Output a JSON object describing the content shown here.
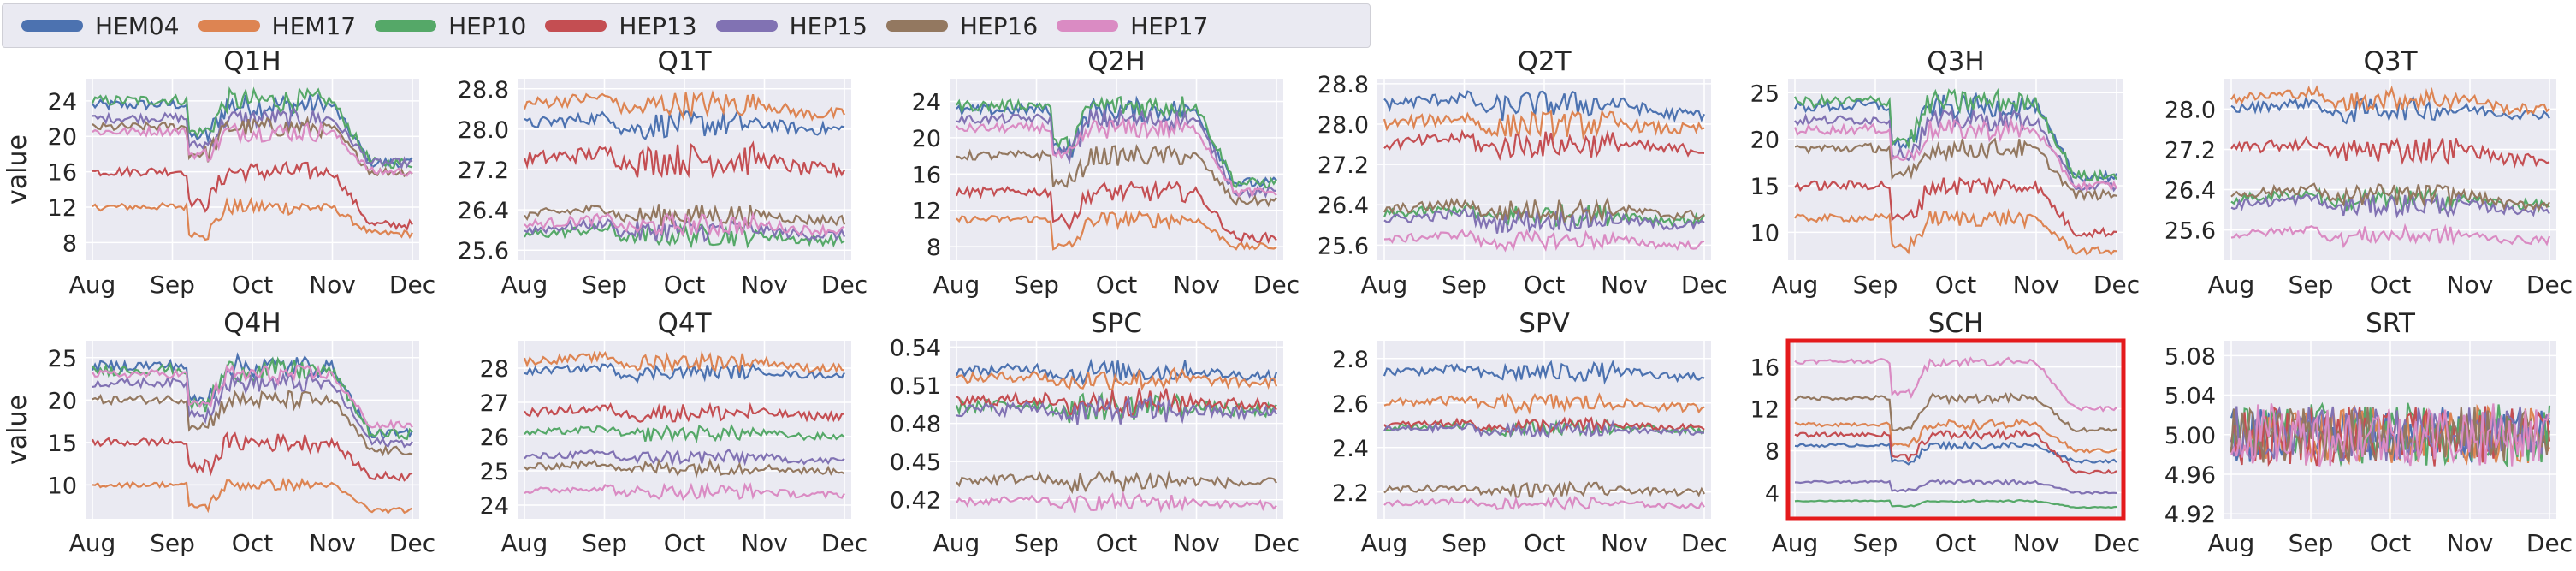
{
  "legend": [
    {
      "name": "HEM04",
      "color": "#4c72b0"
    },
    {
      "name": "HEM17",
      "color": "#dd8452"
    },
    {
      "name": "HEP10",
      "color": "#55a868"
    },
    {
      "name": "HEP13",
      "color": "#c44e52"
    },
    {
      "name": "HEP15",
      "color": "#8172b3"
    },
    {
      "name": "HEP16",
      "color": "#937860"
    },
    {
      "name": "HEP17",
      "color": "#da8bc3"
    }
  ],
  "ylabel": "value",
  "chart_data": [
    {
      "title": "Q1H",
      "type": "line",
      "yticks": [
        "8",
        "12",
        "16",
        "20",
        "24"
      ],
      "ylim": [
        6,
        26.5
      ],
      "xticks": [
        "Aug",
        "Sep",
        "Oct",
        "Nov",
        "Dec"
      ],
      "series": [
        {
          "name": "HEM04",
          "base": 23.5,
          "dip": 3.5,
          "end": 17,
          "noise": 0.6
        },
        {
          "name": "HEM17",
          "base": 12,
          "dip": 3,
          "end": 9,
          "noise": 0.4
        },
        {
          "name": "HEP10",
          "base": 24,
          "dip": 3.5,
          "end": 17,
          "noise": 0.6
        },
        {
          "name": "HEP13",
          "base": 16,
          "dip": 3.5,
          "end": 10,
          "noise": 0.5
        },
        {
          "name": "HEP15",
          "base": 22,
          "dip": 3,
          "end": 17,
          "noise": 0.5
        },
        {
          "name": "HEP16",
          "base": 21,
          "dip": 3,
          "end": 16,
          "noise": 0.5
        },
        {
          "name": "HEP17",
          "base": 20.5,
          "dip": 2.5,
          "end": 16,
          "noise": 0.5
        }
      ]
    },
    {
      "title": "Q1T",
      "type": "line",
      "yticks": [
        "25.6",
        "26.4",
        "27.2",
        "28.0",
        "28.8"
      ],
      "ylim": [
        25.4,
        29.0
      ],
      "xticks": [
        "Aug",
        "Sep",
        "Oct",
        "Nov",
        "Dec"
      ],
      "series": [
        {
          "name": "HEM04",
          "base": 28.1,
          "dip": 0.1,
          "end": 28.0,
          "noise": 0.12
        },
        {
          "name": "HEM17",
          "base": 28.5,
          "dip": 0.1,
          "end": 28.3,
          "noise": 0.12
        },
        {
          "name": "HEP10",
          "base": 25.9,
          "dip": 0.05,
          "end": 25.8,
          "noise": 0.1
        },
        {
          "name": "HEP13",
          "base": 27.4,
          "dip": 0.05,
          "end": 27.2,
          "noise": 0.15
        },
        {
          "name": "HEP15",
          "base": 26.0,
          "dip": 0.05,
          "end": 25.9,
          "noise": 0.1
        },
        {
          "name": "HEP16",
          "base": 26.3,
          "dip": 0.05,
          "end": 26.2,
          "noise": 0.1
        },
        {
          "name": "HEP17",
          "base": 26.1,
          "dip": 0.05,
          "end": 26.0,
          "noise": 0.1
        }
      ]
    },
    {
      "title": "Q2H",
      "type": "line",
      "yticks": [
        "8",
        "12",
        "16",
        "20",
        "24"
      ],
      "ylim": [
        6.5,
        26.5
      ],
      "xticks": [
        "Aug",
        "Sep",
        "Oct",
        "Nov",
        "Dec"
      ],
      "series": [
        {
          "name": "HEM04",
          "base": 23,
          "dip": 4,
          "end": 15,
          "noise": 0.6
        },
        {
          "name": "HEM17",
          "base": 11,
          "dip": 3,
          "end": 8,
          "noise": 0.4
        },
        {
          "name": "HEP10",
          "base": 23.5,
          "dip": 4,
          "end": 15,
          "noise": 0.6
        },
        {
          "name": "HEP13",
          "base": 14,
          "dip": 3,
          "end": 9,
          "noise": 0.5
        },
        {
          "name": "HEP15",
          "base": 22,
          "dip": 3.5,
          "end": 14,
          "noise": 0.5
        },
        {
          "name": "HEP16",
          "base": 18,
          "dip": 3,
          "end": 13,
          "noise": 0.5
        },
        {
          "name": "HEP17",
          "base": 21,
          "dip": 3,
          "end": 14,
          "noise": 0.5
        }
      ]
    },
    {
      "title": "Q2T",
      "type": "line",
      "yticks": [
        "25.6",
        "26.4",
        "27.2",
        "28.0",
        "28.8"
      ],
      "ylim": [
        25.3,
        28.9
      ],
      "xticks": [
        "Aug",
        "Sep",
        "Oct",
        "Nov",
        "Dec"
      ],
      "series": [
        {
          "name": "HEM04",
          "base": 28.4,
          "dip": 0.1,
          "end": 28.2,
          "noise": 0.12
        },
        {
          "name": "HEM17",
          "base": 28.0,
          "dip": 0.1,
          "end": 27.9,
          "noise": 0.12
        },
        {
          "name": "HEP10",
          "base": 26.2,
          "dip": 0.05,
          "end": 26.1,
          "noise": 0.1
        },
        {
          "name": "HEP13",
          "base": 27.6,
          "dip": 0.05,
          "end": 27.5,
          "noise": 0.12
        },
        {
          "name": "HEP15",
          "base": 26.1,
          "dip": 0.05,
          "end": 26.0,
          "noise": 0.1
        },
        {
          "name": "HEP16",
          "base": 26.3,
          "dip": 0.05,
          "end": 26.2,
          "noise": 0.1
        },
        {
          "name": "HEP17",
          "base": 25.7,
          "dip": 0.05,
          "end": 25.6,
          "noise": 0.08
        }
      ]
    },
    {
      "title": "Q3H",
      "type": "line",
      "yticks": [
        "10",
        "15",
        "20",
        "25"
      ],
      "ylim": [
        7,
        26.5
      ],
      "xticks": [
        "Aug",
        "Sep",
        "Oct",
        "Nov",
        "Dec"
      ],
      "series": [
        {
          "name": "HEM04",
          "base": 23.5,
          "dip": 4,
          "end": 16,
          "noise": 0.6
        },
        {
          "name": "HEM17",
          "base": 11.5,
          "dip": 3,
          "end": 8,
          "noise": 0.4
        },
        {
          "name": "HEP10",
          "base": 24,
          "dip": 4,
          "end": 16,
          "noise": 0.6
        },
        {
          "name": "HEP13",
          "base": 15,
          "dip": 3.5,
          "end": 10,
          "noise": 0.5
        },
        {
          "name": "HEP15",
          "base": 22,
          "dip": 3.5,
          "end": 15,
          "noise": 0.5
        },
        {
          "name": "HEP16",
          "base": 19,
          "dip": 3,
          "end": 14,
          "noise": 0.5
        },
        {
          "name": "HEP17",
          "base": 21,
          "dip": 3,
          "end": 15,
          "noise": 0.5
        }
      ]
    },
    {
      "title": "Q3T",
      "type": "line",
      "yticks": [
        "25.6",
        "26.4",
        "27.2",
        "28.0"
      ],
      "ylim": [
        25.0,
        28.6
      ],
      "xticks": [
        "Aug",
        "Sep",
        "Oct",
        "Nov",
        "Dec"
      ],
      "series": [
        {
          "name": "HEM04",
          "base": 28.0,
          "dip": 0.1,
          "end": 27.9,
          "noise": 0.1
        },
        {
          "name": "HEM17",
          "base": 28.2,
          "dip": 0.1,
          "end": 28.0,
          "noise": 0.1
        },
        {
          "name": "HEP10",
          "base": 26.2,
          "dip": 0.05,
          "end": 26.1,
          "noise": 0.1
        },
        {
          "name": "HEP13",
          "base": 27.2,
          "dip": 0.05,
          "end": 27.0,
          "noise": 0.12
        },
        {
          "name": "HEP15",
          "base": 26.1,
          "dip": 0.05,
          "end": 26.0,
          "noise": 0.1
        },
        {
          "name": "HEP16",
          "base": 26.3,
          "dip": 0.05,
          "end": 26.1,
          "noise": 0.1
        },
        {
          "name": "HEP17",
          "base": 25.5,
          "dip": 0.05,
          "end": 25.4,
          "noise": 0.08
        }
      ]
    },
    {
      "title": "Q4H",
      "type": "line",
      "yticks": [
        "10",
        "15",
        "20",
        "25"
      ],
      "ylim": [
        6,
        27
      ],
      "xticks": [
        "Aug",
        "Sep",
        "Oct",
        "Nov",
        "Dec"
      ],
      "series": [
        {
          "name": "HEM04",
          "base": 24,
          "dip": 4,
          "end": 16,
          "noise": 0.6
        },
        {
          "name": "HEM17",
          "base": 10,
          "dip": 2.5,
          "end": 7,
          "noise": 0.3
        },
        {
          "name": "HEP10",
          "base": 23.5,
          "dip": 4,
          "end": 16,
          "noise": 0.6
        },
        {
          "name": "HEP13",
          "base": 15,
          "dip": 3,
          "end": 11,
          "noise": 0.5
        },
        {
          "name": "HEP15",
          "base": 22,
          "dip": 3.5,
          "end": 15,
          "noise": 0.5
        },
        {
          "name": "HEP16",
          "base": 20,
          "dip": 3,
          "end": 14,
          "noise": 0.5
        },
        {
          "name": "HEP17",
          "base": 23,
          "dip": 3.5,
          "end": 17,
          "noise": 0.5
        }
      ]
    },
    {
      "title": "Q4T",
      "type": "line",
      "yticks": [
        "24",
        "25",
        "26",
        "27",
        "28"
      ],
      "ylim": [
        23.6,
        28.8
      ],
      "xticks": [
        "Aug",
        "Sep",
        "Oct",
        "Nov",
        "Dec"
      ],
      "series": [
        {
          "name": "HEM04",
          "base": 27.9,
          "dip": 0.1,
          "end": 27.8,
          "noise": 0.1
        },
        {
          "name": "HEM17",
          "base": 28.2,
          "dip": 0.1,
          "end": 28.0,
          "noise": 0.12
        },
        {
          "name": "HEP10",
          "base": 26.1,
          "dip": 0.05,
          "end": 26.0,
          "noise": 0.1
        },
        {
          "name": "HEP13",
          "base": 26.7,
          "dip": 0.05,
          "end": 26.6,
          "noise": 0.12
        },
        {
          "name": "HEP15",
          "base": 25.4,
          "dip": 0.05,
          "end": 25.3,
          "noise": 0.1
        },
        {
          "name": "HEP16",
          "base": 25.1,
          "dip": 0.05,
          "end": 25.0,
          "noise": 0.1
        },
        {
          "name": "HEP17",
          "base": 24.4,
          "dip": 0.05,
          "end": 24.3,
          "noise": 0.1
        }
      ]
    },
    {
      "title": "SPC",
      "type": "line",
      "yticks": [
        "0.42",
        "0.45",
        "0.48",
        "0.51",
        "0.54"
      ],
      "ylim": [
        0.405,
        0.545
      ],
      "xticks": [
        "Aug",
        "Sep",
        "Oct",
        "Nov",
        "Dec"
      ],
      "series": [
        {
          "name": "HEM04",
          "base": 0.521,
          "dip": 0.003,
          "end": 0.518,
          "noise": 0.004
        },
        {
          "name": "HEM17",
          "base": 0.515,
          "dip": 0.003,
          "end": 0.512,
          "noise": 0.004
        },
        {
          "name": "HEP10",
          "base": 0.493,
          "dip": 0.002,
          "end": 0.49,
          "noise": 0.005
        },
        {
          "name": "HEP13",
          "base": 0.497,
          "dip": 0.002,
          "end": 0.495,
          "noise": 0.005
        },
        {
          "name": "HEP15",
          "base": 0.49,
          "dip": 0.002,
          "end": 0.488,
          "noise": 0.005
        },
        {
          "name": "HEP16",
          "base": 0.435,
          "dip": 0.002,
          "end": 0.433,
          "noise": 0.004
        },
        {
          "name": "HEP17",
          "base": 0.418,
          "dip": 0.002,
          "end": 0.416,
          "noise": 0.003
        }
      ]
    },
    {
      "title": "SPV",
      "type": "line",
      "yticks": [
        "2.2",
        "2.4",
        "2.6",
        "2.8"
      ],
      "ylim": [
        2.08,
        2.88
      ],
      "xticks": [
        "Aug",
        "Sep",
        "Oct",
        "Nov",
        "Dec"
      ],
      "series": [
        {
          "name": "HEM04",
          "base": 2.74,
          "dip": 0.01,
          "end": 2.72,
          "noise": 0.02
        },
        {
          "name": "HEM17",
          "base": 2.6,
          "dip": 0.01,
          "end": 2.58,
          "noise": 0.02
        },
        {
          "name": "HEP10",
          "base": 2.49,
          "dip": 0.01,
          "end": 2.48,
          "noise": 0.015
        },
        {
          "name": "HEP13",
          "base": 2.5,
          "dip": 0.01,
          "end": 2.49,
          "noise": 0.015
        },
        {
          "name": "HEP15",
          "base": 2.48,
          "dip": 0.01,
          "end": 2.47,
          "noise": 0.015
        },
        {
          "name": "HEP16",
          "base": 2.21,
          "dip": 0.005,
          "end": 2.2,
          "noise": 0.015
        },
        {
          "name": "HEP17",
          "base": 2.15,
          "dip": 0.005,
          "end": 2.14,
          "noise": 0.012
        }
      ]
    },
    {
      "title": "SCH",
      "type": "line",
      "highlight": true,
      "yticks": [
        "4",
        "8",
        "12",
        "16"
      ],
      "ylim": [
        1.5,
        18.5
      ],
      "xticks": [
        "Aug",
        "Sep",
        "Oct",
        "Nov",
        "Dec"
      ],
      "series": [
        {
          "name": "HEM04",
          "base": 8.5,
          "dip": 1.5,
          "end": 7,
          "noise": 0.15
        },
        {
          "name": "HEM17",
          "base": 10.5,
          "dip": 2,
          "end": 8,
          "noise": 0.2
        },
        {
          "name": "HEP10",
          "base": 3.2,
          "dip": 0.5,
          "end": 2.6,
          "noise": 0.05
        },
        {
          "name": "HEP13",
          "base": 9.5,
          "dip": 2,
          "end": 6,
          "noise": 0.2
        },
        {
          "name": "HEP15",
          "base": 5,
          "dip": 0.8,
          "end": 4,
          "noise": 0.1
        },
        {
          "name": "HEP16",
          "base": 13,
          "dip": 3,
          "end": 10,
          "noise": 0.2
        },
        {
          "name": "HEP17",
          "base": 16.5,
          "dip": 3,
          "end": 12,
          "noise": 0.2
        }
      ]
    },
    {
      "title": "SRT",
      "type": "line",
      "noisy": true,
      "yticks": [
        "4.92",
        "4.96",
        "5.00",
        "5.04",
        "5.08"
      ],
      "ylim": [
        4.915,
        5.095
      ],
      "xticks": [
        "Aug",
        "Sep",
        "Oct",
        "Nov",
        "Dec"
      ],
      "series": [
        {
          "name": "HEM04",
          "base": 5.0,
          "dip": 0,
          "end": 5.0,
          "noise": 0.018
        },
        {
          "name": "HEM17",
          "base": 5.0,
          "dip": 0,
          "end": 5.0,
          "noise": 0.018
        },
        {
          "name": "HEP10",
          "base": 5.0,
          "dip": 0,
          "end": 5.0,
          "noise": 0.02
        },
        {
          "name": "HEP13",
          "base": 5.0,
          "dip": 0,
          "end": 5.0,
          "noise": 0.02
        },
        {
          "name": "HEP15",
          "base": 5.0,
          "dip": 0,
          "end": 5.0,
          "noise": 0.018
        },
        {
          "name": "HEP16",
          "base": 5.0,
          "dip": 0,
          "end": 5.0,
          "noise": 0.018
        },
        {
          "name": "HEP17",
          "base": 5.0,
          "dip": 0,
          "end": 5.0,
          "noise": 0.02
        }
      ]
    }
  ]
}
